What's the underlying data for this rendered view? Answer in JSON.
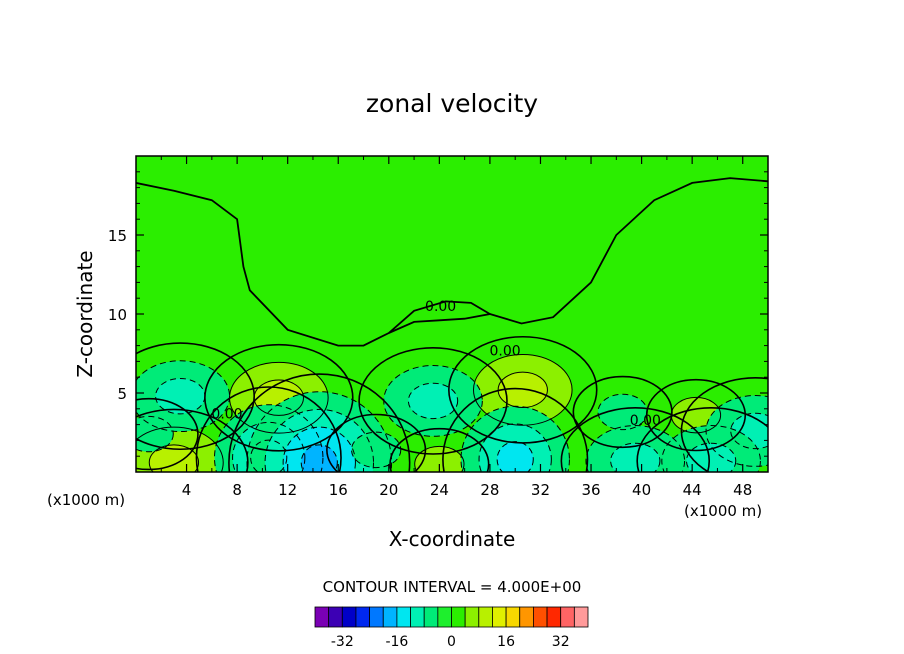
{
  "chart_data": {
    "type": "contour",
    "title": "zonal velocity",
    "xlabel": "X-coordinate",
    "ylabel": "Z-coordinate",
    "x_unit_left": "(x1000 m)",
    "x_unit_right": "(x1000 m)",
    "xlim": [
      0,
      50
    ],
    "ylim": [
      0,
      20
    ],
    "x_ticks": [
      4,
      8,
      12,
      16,
      20,
      24,
      28,
      32,
      36,
      40,
      44,
      48
    ],
    "y_ticks": [
      5,
      10,
      15
    ],
    "contour_interval_text": "CONTOUR INTERVAL = 4.000E+00",
    "contour_labels": [
      {
        "text": "0.00",
        "x": 24.1,
        "y": 10.5
      },
      {
        "text": "0.00",
        "x": 29.2,
        "y": 7.7
      },
      {
        "text": "0.00",
        "x": 7.2,
        "y": 3.7
      },
      {
        "text": "0.00",
        "x": 40.3,
        "y": 3.3
      }
    ],
    "features": [
      {
        "kind": "max",
        "x": 11.3,
        "y": 4.7,
        "level": 8
      },
      {
        "kind": "max",
        "x": 30.6,
        "y": 5.2,
        "level": 8
      },
      {
        "kind": "max",
        "x": 44.3,
        "y": 3.6,
        "level": 4
      },
      {
        "kind": "max",
        "x": 3.0,
        "y": 0.6,
        "level": 8
      },
      {
        "kind": "max",
        "x": 24.0,
        "y": 0.5,
        "level": 4
      },
      {
        "kind": "min",
        "x": 3.5,
        "y": 4.8,
        "level": -8
      },
      {
        "kind": "min",
        "x": 23.5,
        "y": 4.5,
        "level": -8
      },
      {
        "kind": "min",
        "x": 38.5,
        "y": 3.8,
        "level": -4
      },
      {
        "kind": "min",
        "x": 49.0,
        "y": 2.6,
        "level": -8
      },
      {
        "kind": "min",
        "x": 10.5,
        "y": 0.9,
        "level": -12
      },
      {
        "kind": "min",
        "x": 14.5,
        "y": 0.6,
        "level": -16
      },
      {
        "kind": "min",
        "x": 30.0,
        "y": 0.8,
        "level": -12
      },
      {
        "kind": "min",
        "x": 39.5,
        "y": 0.7,
        "level": -8
      },
      {
        "kind": "min",
        "x": 45.5,
        "y": 0.7,
        "level": -8
      },
      {
        "kind": "min",
        "x": 1.0,
        "y": 2.4,
        "level": -4
      },
      {
        "kind": "min",
        "x": 19.0,
        "y": 1.4,
        "level": -4
      }
    ],
    "colorbar": {
      "levels": [
        -36,
        -32,
        -28,
        -24,
        -20,
        -16,
        -12,
        -8,
        -4,
        0,
        4,
        8,
        12,
        16,
        20,
        24,
        28,
        32,
        36
      ],
      "tick_labels": [
        "-32",
        "-16",
        "0",
        "16",
        "32"
      ],
      "tick_values": [
        -32,
        -16,
        0,
        16,
        32
      ],
      "colors": [
        "#7a00b4",
        "#3c00b4",
        "#0000c8",
        "#0028f0",
        "#0078ff",
        "#00b4ff",
        "#00e6f0",
        "#00f0b4",
        "#00eb78",
        "#1eef2d",
        "#2bee00",
        "#8cf000",
        "#b8f000",
        "#e0f000",
        "#f8d800",
        "#ff9600",
        "#ff5000",
        "#ff2800",
        "#ff6464",
        "#ff9a9a"
      ]
    }
  }
}
